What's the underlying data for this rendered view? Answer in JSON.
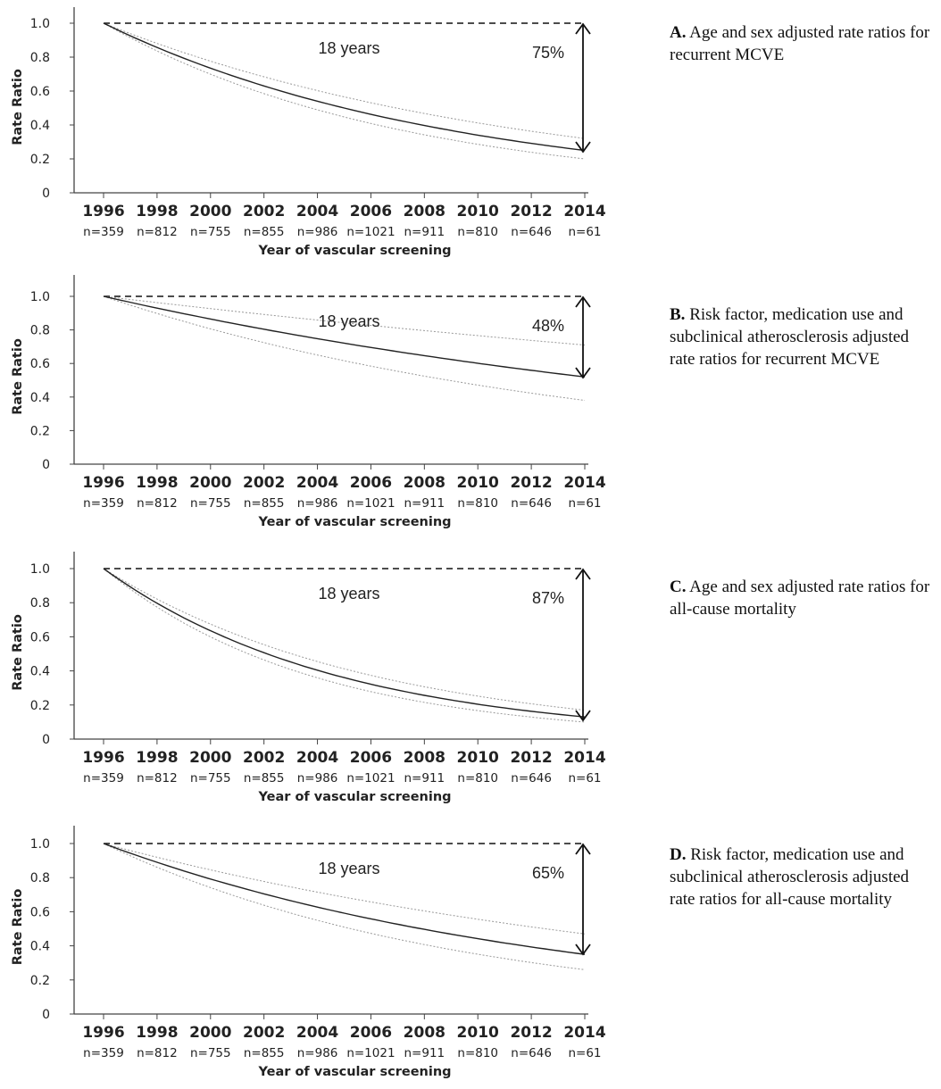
{
  "chart_data": [
    {
      "type": "line",
      "panel_letter": "A.",
      "caption": "Age and sex adjusted rate ratios for recurrent MCVE",
      "ylabel": "Rate Ratio",
      "xlabel": "Year of vascular screening",
      "ylim": [
        0,
        1.1
      ],
      "y_ticks": [
        "1.0",
        "0.8",
        "0.6",
        "0.4",
        "0.2",
        "0"
      ],
      "x_ticks": [
        "1996",
        "1998",
        "2000",
        "2002",
        "2004",
        "2006",
        "2008",
        "2010",
        "2012",
        "2014"
      ],
      "n_labels": [
        "n=359",
        "n=812",
        "n=755",
        "n=855",
        "n=986",
        "n=1021",
        "n=911",
        "n=810",
        "n=646",
        "n=61"
      ],
      "reference_line": 1.0,
      "span_label": "18 years",
      "reduction_label": "75%",
      "estimate": {
        "start": 1.0,
        "end": 0.25
      },
      "lower_ci": {
        "start": 1.0,
        "end": 0.2
      },
      "upper_ci": {
        "start": 1.0,
        "end": 0.32
      }
    },
    {
      "type": "line",
      "panel_letter": "B.",
      "caption": "Risk factor, medication use and subclinical atherosclerosis adjusted rate ratios for recurrent MCVE",
      "ylabel": "Rate Ratio",
      "xlabel": "Year of vascular screening",
      "ylim": [
        0,
        1.1
      ],
      "y_ticks": [
        "1.0",
        "0.8",
        "0.6",
        "0.4",
        "0.2",
        "0"
      ],
      "x_ticks": [
        "1996",
        "1998",
        "2000",
        "2002",
        "2004",
        "2006",
        "2008",
        "2010",
        "2012",
        "2014"
      ],
      "n_labels": [
        "n=359",
        "n=812",
        "n=755",
        "n=855",
        "n=986",
        "n=1021",
        "n=911",
        "n=810",
        "n=646",
        "n=61"
      ],
      "reference_line": 1.0,
      "span_label": "18 years",
      "reduction_label": "48%",
      "estimate": {
        "start": 1.0,
        "end": 0.52
      },
      "lower_ci": {
        "start": 1.0,
        "end": 0.38
      },
      "upper_ci": {
        "start": 1.0,
        "end": 0.71
      }
    },
    {
      "type": "line",
      "panel_letter": "C.",
      "caption": "Age and sex adjusted rate ratios for all-cause mortality",
      "ylabel": "Rate Ratio",
      "xlabel": "Year of vascular screening",
      "ylim": [
        0,
        1.1
      ],
      "y_ticks": [
        "1.0",
        "0.8",
        "0.6",
        "0.4",
        "0.2",
        "0"
      ],
      "x_ticks": [
        "1996",
        "1998",
        "2000",
        "2002",
        "2004",
        "2006",
        "2008",
        "2010",
        "2012",
        "2014"
      ],
      "n_labels": [
        "n=359",
        "n=812",
        "n=755",
        "n=855",
        "n=986",
        "n=1021",
        "n=911",
        "n=810",
        "n=646",
        "n=61"
      ],
      "reference_line": 1.0,
      "span_label": "18 years",
      "reduction_label": "87%",
      "estimate": {
        "start": 1.0,
        "end": 0.13
      },
      "lower_ci": {
        "start": 1.0,
        "end": 0.1
      },
      "upper_ci": {
        "start": 1.0,
        "end": 0.17
      }
    },
    {
      "type": "line",
      "panel_letter": "D.",
      "caption": "Risk factor, medication use and subclinical atherosclerosis adjusted rate ratios for all-cause mortality",
      "ylabel": "Rate Ratio",
      "xlabel": "Year of vascular screening",
      "ylim": [
        0,
        1.1
      ],
      "y_ticks": [
        "1.0",
        "0.8",
        "0.6",
        "0.4",
        "0.2",
        "0"
      ],
      "x_ticks": [
        "1996",
        "1998",
        "2000",
        "2002",
        "2004",
        "2006",
        "2008",
        "2010",
        "2012",
        "2014"
      ],
      "n_labels": [
        "n=359",
        "n=812",
        "n=755",
        "n=855",
        "n=986",
        "n=1021",
        "n=911",
        "n=810",
        "n=646",
        "n=61"
      ],
      "reference_line": 1.0,
      "span_label": "18 years",
      "reduction_label": "65%",
      "estimate": {
        "start": 1.0,
        "end": 0.35
      },
      "lower_ci": {
        "start": 1.0,
        "end": 0.26
      },
      "upper_ci": {
        "start": 1.0,
        "end": 0.47
      }
    }
  ],
  "colors": {
    "line": "#222222",
    "ci": "#9a9a9a",
    "axis": "#444444",
    "text": "#222222"
  }
}
